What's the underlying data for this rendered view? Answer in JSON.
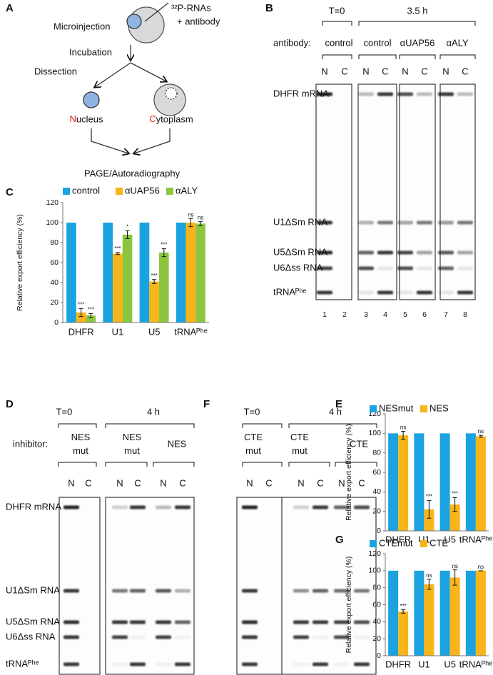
{
  "diagram": {
    "panel": "A",
    "injection_label": "³²P-RNAs",
    "injection_label_2": "+ antibody",
    "steps": [
      "Microinjection",
      "Incubation",
      "Dissection"
    ],
    "nucleus": "Nucleus",
    "cytoplasm": "Cytoplasm",
    "readout": "PAGE/Autoradiography"
  },
  "gel_b": {
    "panel": "B",
    "time_labels": [
      "T=0",
      "3.5 h"
    ],
    "condition_label": "antibody:",
    "conditions": [
      [
        "control"
      ],
      [
        "control"
      ],
      [
        "αUAP56"
      ],
      [
        "αALY"
      ]
    ],
    "lanes": [
      "N",
      "C",
      "N",
      "C",
      "N",
      "C",
      "N",
      "C"
    ],
    "lane_numbers": [
      1,
      2,
      3,
      4,
      5,
      6,
      7,
      8
    ],
    "rows": [
      "DHFR mRNA",
      "U1ΔSm RNA",
      "U5ΔSm RNA",
      "U6Δss RNA",
      "tRNAᴾʰᵉ"
    ]
  },
  "gel_d": {
    "panel": "D",
    "time_labels": [
      "T=0",
      "4 h"
    ],
    "condition_label": "inhibitor:",
    "conditions": [
      [
        "NES",
        "mut"
      ],
      [
        "NES",
        "mut"
      ],
      [
        "NES"
      ]
    ],
    "lanes": [
      "N",
      "C",
      "N",
      "C",
      "N",
      "C"
    ],
    "rows": [
      "DHFR mRNA",
      "U1ΔSm RNA",
      "U5ΔSm RNA",
      "U6Δss RNA",
      "tRNAᴾʰᵉ"
    ]
  },
  "gel_f": {
    "panel": "F",
    "time_labels": [
      "T=0",
      "4 h"
    ],
    "conditions": [
      [
        "CTE",
        "mut"
      ],
      [
        "CTE",
        "mut"
      ],
      [
        "CTE"
      ]
    ],
    "lanes": [
      "N",
      "C",
      "N",
      "C",
      "N",
      "C"
    ]
  },
  "chart_data": [
    {
      "type": "bar",
      "panel": "C",
      "ylabel": "Relative export efficiency (%)",
      "categories": [
        "DHFR",
        "U1",
        "U5",
        "tRNAᴾʰᵉ"
      ],
      "ylim": [
        0,
        120
      ],
      "yticks": [
        0,
        20,
        40,
        60,
        80,
        100,
        120
      ],
      "series": [
        {
          "name": "control",
          "color": "#1aa3e0",
          "values": [
            100,
            100,
            100,
            100
          ]
        },
        {
          "name": "αUAP56",
          "color": "#f7b519",
          "values": [
            10,
            69,
            41,
            100
          ],
          "errors": [
            4,
            1,
            2,
            4
          ],
          "annotations": [
            "***",
            "***",
            "***",
            "ns"
          ]
        },
        {
          "name": "αALY",
          "color": "#8cc63e",
          "values": [
            7,
            88,
            70,
            99
          ],
          "errors": [
            2,
            4,
            4,
            2
          ],
          "annotations": [
            "***",
            "*",
            "***",
            "ns"
          ]
        }
      ]
    },
    {
      "type": "bar",
      "panel": "E",
      "ylabel": "Relative export efficiency (%)",
      "categories": [
        "DHFR",
        "U1",
        "U5",
        "tRNAᴾʰᵉ"
      ],
      "ylim": [
        0,
        120
      ],
      "yticks": [
        0,
        20,
        40,
        60,
        80,
        100,
        120
      ],
      "series": [
        {
          "name": "NESmut",
          "color": "#1aa3e0",
          "values": [
            100,
            100,
            100,
            100
          ]
        },
        {
          "name": "NES",
          "color": "#f7b519",
          "values": [
            98,
            22,
            27,
            97
          ],
          "errors": [
            4,
            9,
            7,
            1
          ],
          "annotations": [
            "ns",
            "***",
            "***",
            "ns"
          ]
        }
      ]
    },
    {
      "type": "bar",
      "panel": "G",
      "ylabel": "Relative export efficiency (%)",
      "categories": [
        "DHFR",
        "U1",
        "U5",
        "tRNAᴾʰᵉ"
      ],
      "ylim": [
        0,
        120
      ],
      "yticks": [
        0,
        20,
        40,
        60,
        80,
        100,
        120
      ],
      "series": [
        {
          "name": "CTEmut",
          "color": "#1aa3e0",
          "values": [
            100,
            100,
            100,
            100
          ]
        },
        {
          "name": "CTE",
          "color": "#f7b519",
          "values": [
            52,
            84,
            92,
            100
          ],
          "errors": [
            2,
            6,
            9,
            0
          ],
          "annotations": [
            "***",
            "ns",
            "ns",
            "ns"
          ]
        }
      ]
    }
  ]
}
